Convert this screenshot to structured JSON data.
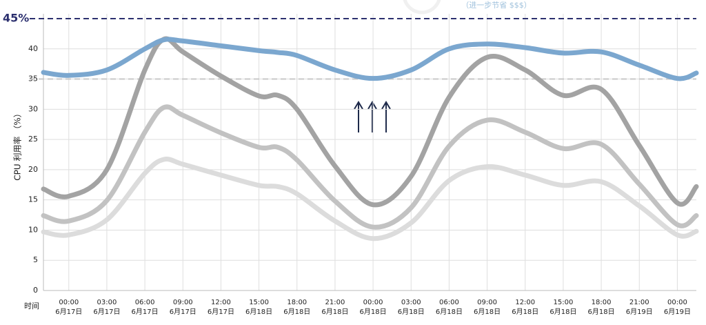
{
  "chart_data": {
    "type": "line",
    "y_label": "CPU 利用率 （%）",
    "x_label": "时间",
    "annotation": "（进一步节省 $$$）",
    "xlim": [
      -2,
      49.5
    ],
    "ylim": [
      0,
      45.8
    ],
    "yticks": [
      0,
      5,
      10,
      15,
      20,
      25,
      30,
      35,
      40
    ],
    "xticks": [
      {
        "value": 0,
        "label": "00:00",
        "sublabel": "6月17日"
      },
      {
        "value": 3,
        "label": "03:00",
        "sublabel": "6月17日"
      },
      {
        "value": 6,
        "label": "06:00",
        "sublabel": "6月17日"
      },
      {
        "value": 9,
        "label": "09:00",
        "sublabel": "6月17日"
      },
      {
        "value": 12,
        "label": "12:00",
        "sublabel": "6月17日"
      },
      {
        "value": 15,
        "label": "15:00",
        "sublabel": "6月18日"
      },
      {
        "value": 18,
        "label": "18:00",
        "sublabel": "6月18日"
      },
      {
        "value": 21,
        "label": "21:00",
        "sublabel": "6月18日"
      },
      {
        "value": 24,
        "label": "00:00",
        "sublabel": "6月18日"
      },
      {
        "value": 27,
        "label": "03:00",
        "sublabel": "6月18日"
      },
      {
        "value": 30,
        "label": "06:00",
        "sublabel": "6月18日"
      },
      {
        "value": 33,
        "label": "09:00",
        "sublabel": "6月18日"
      },
      {
        "value": 36,
        "label": "12:00",
        "sublabel": "6月18日"
      },
      {
        "value": 39,
        "label": "15:00",
        "sublabel": "6月18日"
      },
      {
        "value": 42,
        "label": "18:00",
        "sublabel": "6月18日"
      },
      {
        "value": 45,
        "label": "21:00",
        "sublabel": "6月19日"
      },
      {
        "value": 48,
        "label": "00:00",
        "sublabel": "6月19日"
      }
    ],
    "grid": true,
    "threshold_lines": [
      {
        "value": 45,
        "label": "45%",
        "color": "#2b2f6e"
      },
      {
        "value": 35,
        "color": "#c8c8c8"
      }
    ],
    "x": [
      -2,
      0,
      3,
      6,
      7.5,
      9,
      12,
      15,
      16.5,
      18,
      21,
      24,
      27,
      30,
      33,
      36,
      39,
      42,
      45,
      48,
      49.5
    ],
    "series": [
      {
        "color": "#dcdcdc",
        "values": [
          9.7,
          9.2,
          11.7,
          19.4,
          21.7,
          20.9,
          19.1,
          17.4,
          17.2,
          16,
          11.5,
          8.6,
          11.2,
          18.2,
          20.5,
          19.1,
          17.4,
          18,
          14,
          9.2,
          9.8
        ]
      },
      {
        "color": "#c2c2c2",
        "values": [
          12.4,
          11.5,
          14.9,
          26.2,
          30.3,
          29,
          26.1,
          23.7,
          23.7,
          21.6,
          14.8,
          10.5,
          13.7,
          23.9,
          28.2,
          26.2,
          23.5,
          24.2,
          17.6,
          10.9,
          12.4
        ]
      },
      {
        "color": "#a3a3a3",
        "values": [
          16.8,
          15.6,
          20,
          36.5,
          41.6,
          39.5,
          35.5,
          32.2,
          32.3,
          30,
          20.6,
          14.2,
          18.9,
          32,
          38.6,
          36.5,
          32.3,
          33.3,
          24,
          14.5,
          17.2
        ]
      },
      {
        "color": "#7ba7cf",
        "values": [
          36.1,
          35.6,
          36.5,
          40,
          41.5,
          41.3,
          40.5,
          39.7,
          39.4,
          38.9,
          36.5,
          35.1,
          36.5,
          40,
          40.8,
          40.2,
          39.3,
          39.5,
          37.3,
          35.1,
          36
        ]
      }
    ]
  }
}
